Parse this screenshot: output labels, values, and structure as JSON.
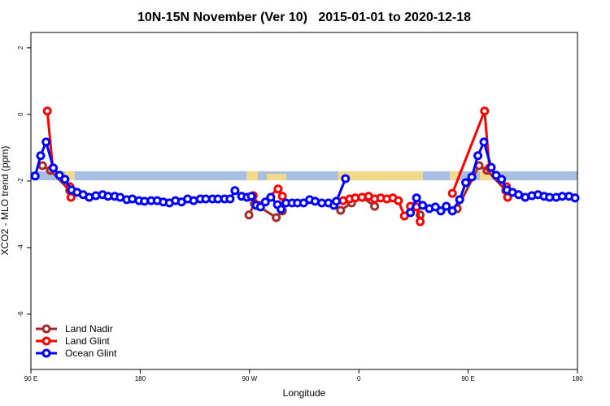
{
  "chart_data": {
    "type": "line",
    "title": "10N-15N November (Ver 10)   2015-01-01 to 2020-12-18",
    "xlabel": "Longitude",
    "ylabel": "XCO2 - MLO trend (ppm)",
    "xlim": [
      90,
      540
    ],
    "ylim": [
      -7.66,
      2.46
    ],
    "xticks": [
      {
        "value": 90,
        "label": "90 E"
      },
      180,
      {
        "value": 270,
        "label": "90 W"
      },
      {
        "value": 360,
        "label": "0"
      },
      {
        "value": 450,
        "label": "90 E"
      },
      {
        "value": 540,
        "label": "180"
      }
    ],
    "yticks": [
      2,
      0,
      -2,
      -4,
      -6
    ],
    "legend": "bottom-left",
    "series": [
      {
        "name": "Land Nadir",
        "color": "#a52a2a",
        "x": [
          99.5,
          106,
          122,
          200,
          269.5,
          274,
          292,
          297,
          320,
          345,
          354,
          363,
          373,
          390,
          410.5,
          425,
          441,
          459,
          465.5,
          481
        ],
        "values": [
          -1.54,
          -1.68,
          -2.29,
          null,
          -3.02,
          -2.68,
          -3.1,
          -2.9,
          null,
          -2.88,
          -2.66,
          -2.49,
          -2.76,
          null,
          -3.02,
          null,
          -2.83,
          -1.54,
          -1.68,
          -2.29
        ]
      },
      {
        "name": "Land Glint",
        "color": "#ff0000",
        "x": [
          103.5,
          108,
          122,
          123,
          200,
          273,
          277.5,
          293.5,
          297,
          320,
          347,
          352.5,
          357,
          362.5,
          368,
          373,
          378,
          383,
          388,
          392.5,
          397.5,
          402.5,
          407.5,
          410.5,
          425,
          437,
          463.5,
          467.5,
          481.5,
          482.5
        ],
        "values": [
          0.1,
          -1.61,
          -2.17,
          -2.49,
          null,
          -2.44,
          -2.73,
          -2.24,
          -2.46,
          null,
          -2.59,
          -2.54,
          -2.51,
          -2.49,
          -2.46,
          -2.54,
          -2.51,
          -2.54,
          -2.51,
          -2.59,
          -3.05,
          -2.76,
          -2.78,
          -3.22,
          null,
          -2.37,
          0.1,
          -1.61,
          -2.17,
          -2.49
        ]
      },
      {
        "name": "Ocean Glint",
        "color": "#0000ff",
        "x": [
          93.5,
          98,
          102.5,
          108.5,
          113.5,
          118,
          123.5,
          128,
          133,
          138,
          143.5,
          149,
          153.5,
          159,
          163.5,
          169,
          173.5,
          179,
          183.5,
          189,
          194,
          199,
          204,
          209,
          214,
          219,
          224,
          229.5,
          234,
          239.5,
          244,
          249.5,
          254,
          258,
          263.5,
          268,
          271.5,
          275.5,
          279,
          283,
          287.5,
          293,
          296,
          300,
          305,
          309.5,
          314.5,
          319.5,
          324,
          329.5,
          335,
          339.5,
          341.5,
          349,
          375,
          402.5,
          407.5,
          412.5,
          418,
          423,
          427.5,
          432,
          437,
          443,
          448,
          453,
          458,
          463,
          469,
          473,
          477.5,
          482,
          486.5,
          491.5,
          497,
          502.5,
          507.5,
          512.5,
          517,
          522.5,
          527.5,
          533,
          538
        ],
        "values": [
          -1.85,
          -1.24,
          -0.83,
          -1.61,
          -1.83,
          -1.95,
          -2.27,
          -2.34,
          -2.41,
          -2.49,
          -2.44,
          -2.41,
          -2.46,
          -2.46,
          -2.49,
          -2.56,
          -2.54,
          -2.59,
          -2.61,
          -2.59,
          -2.59,
          -2.63,
          -2.66,
          -2.59,
          -2.63,
          -2.54,
          -2.59,
          -2.54,
          -2.54,
          -2.54,
          -2.54,
          -2.54,
          -2.54,
          -2.29,
          -2.46,
          -2.49,
          -2.46,
          -2.73,
          -2.78,
          -2.63,
          -2.49,
          -2.71,
          -2.85,
          -2.66,
          -2.66,
          -2.66,
          -2.66,
          -2.56,
          -2.61,
          -2.66,
          -2.66,
          -2.73,
          -2.61,
          -1.93,
          null,
          -2.95,
          -2.51,
          -2.73,
          -2.83,
          -2.78,
          -2.9,
          -2.76,
          -2.9,
          -2.56,
          -2.05,
          -1.88,
          -1.24,
          -0.83,
          -1.59,
          -1.83,
          -1.95,
          -2.27,
          -2.34,
          -2.41,
          -2.49,
          -2.44,
          -2.41,
          -2.46,
          -2.49,
          -2.49,
          -2.46,
          -2.46,
          -2.51
        ]
      }
    ]
  }
}
